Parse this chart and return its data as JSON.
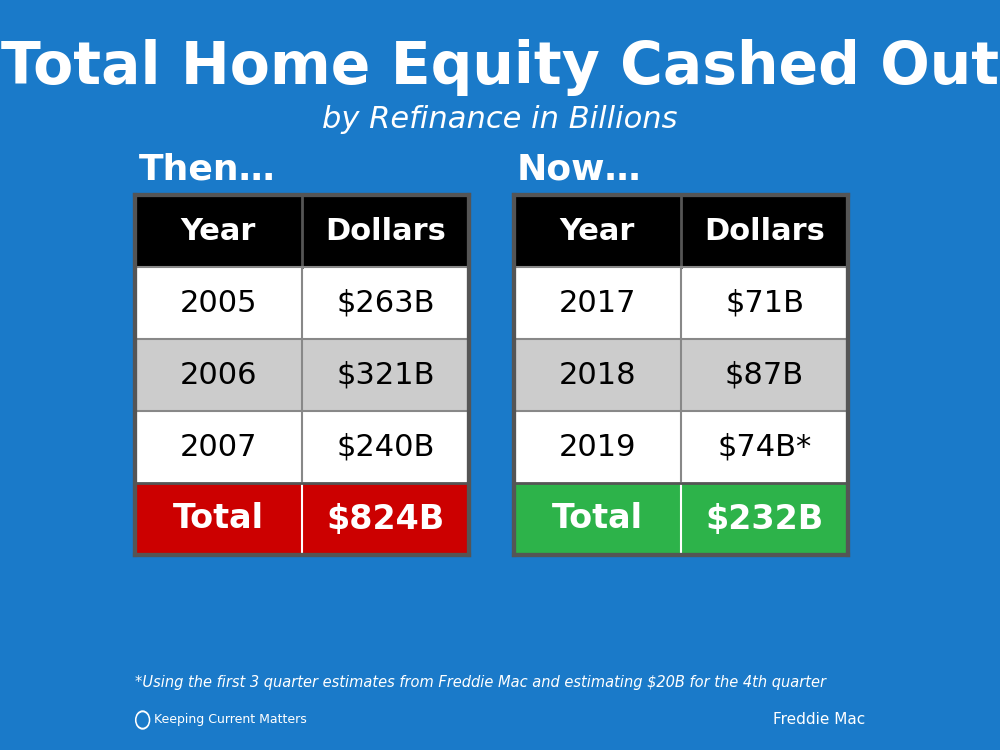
{
  "title": "Total Home Equity Cashed Out",
  "subtitle": "by Refinance in Billions",
  "bg_color": "#1a7ac9",
  "then_label": "Then…",
  "now_label": "Now…",
  "then_table": {
    "headers": [
      "Year",
      "Dollars"
    ],
    "rows": [
      [
        "2005",
        "$263B"
      ],
      [
        "2006",
        "$321B"
      ],
      [
        "2007",
        "$240B"
      ]
    ],
    "total_row": [
      "Total",
      "$824B"
    ],
    "total_bg": "#cc0000",
    "row_colors": [
      "#ffffff",
      "#cccccc",
      "#ffffff"
    ]
  },
  "now_table": {
    "headers": [
      "Year",
      "Dollars"
    ],
    "rows": [
      [
        "2017",
        "$71B"
      ],
      [
        "2018",
        "$87B"
      ],
      [
        "2019",
        "$74B*"
      ]
    ],
    "total_row": [
      "Total",
      "$232B"
    ],
    "total_bg": "#2db34a",
    "row_colors": [
      "#ffffff",
      "#cccccc",
      "#ffffff"
    ]
  },
  "header_bg": "#000000",
  "header_fg": "#ffffff",
  "footnote": "*Using the first 3 quarter estimates from Freddie Mac and estimating $20B for the 4th quarter",
  "logo_text": "Keeping Current Matters",
  "source_text": "Freddie Mac",
  "title_color": "#ffffff",
  "subtitle_color": "#ffffff",
  "label_color": "#ffffff"
}
